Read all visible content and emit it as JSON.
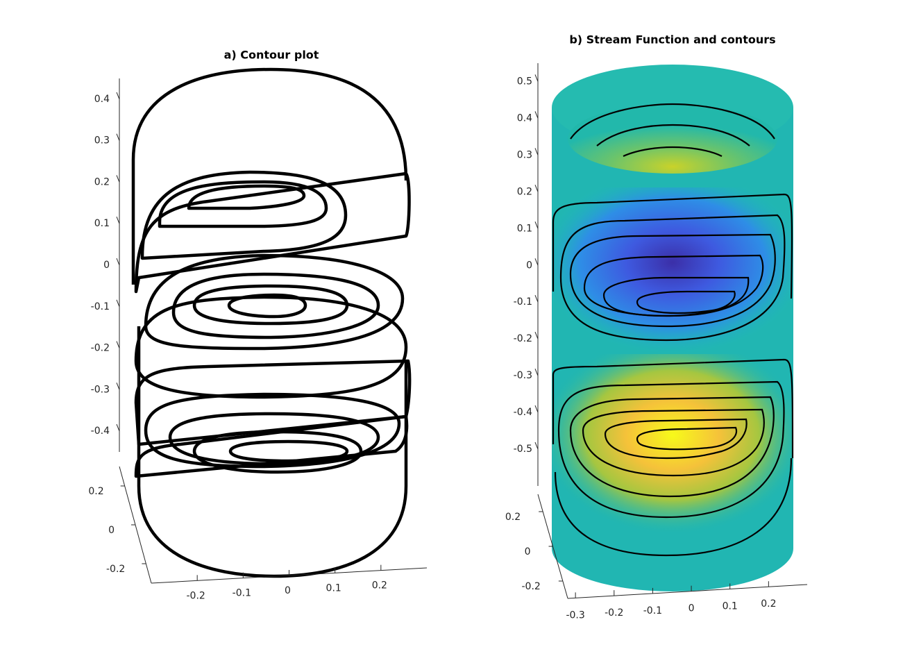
{
  "chart_data": [
    {
      "type": "contour3d",
      "title": "a) Contour plot",
      "zlim": [
        -0.45,
        0.45
      ],
      "zticks": [
        -0.4,
        -0.3,
        -0.2,
        -0.1,
        0,
        0.1,
        0.2,
        0.3,
        0.4
      ],
      "ylim": [
        -0.3,
        0.3
      ],
      "yticks": [
        -0.2,
        0,
        0.2
      ],
      "xlim": [
        -0.3,
        0.3
      ],
      "xticks": [
        -0.2,
        -0.1,
        0,
        0.1,
        0.2
      ]
    },
    {
      "type": "surface3d",
      "title": "b) Stream Function and contours",
      "zlim": [
        -0.6,
        0.55
      ],
      "zticks": [
        -0.5,
        -0.4,
        -0.3,
        -0.2,
        -0.1,
        0,
        0.1,
        0.2,
        0.3,
        0.4,
        0.5
      ],
      "ylim": [
        -0.3,
        0.3
      ],
      "yticks": [
        -0.2,
        0,
        0.2
      ],
      "xlim": [
        -0.32,
        0.3
      ],
      "xticks": [
        -0.3,
        -0.2,
        -0.1,
        0,
        0.1,
        0.2
      ]
    }
  ]
}
